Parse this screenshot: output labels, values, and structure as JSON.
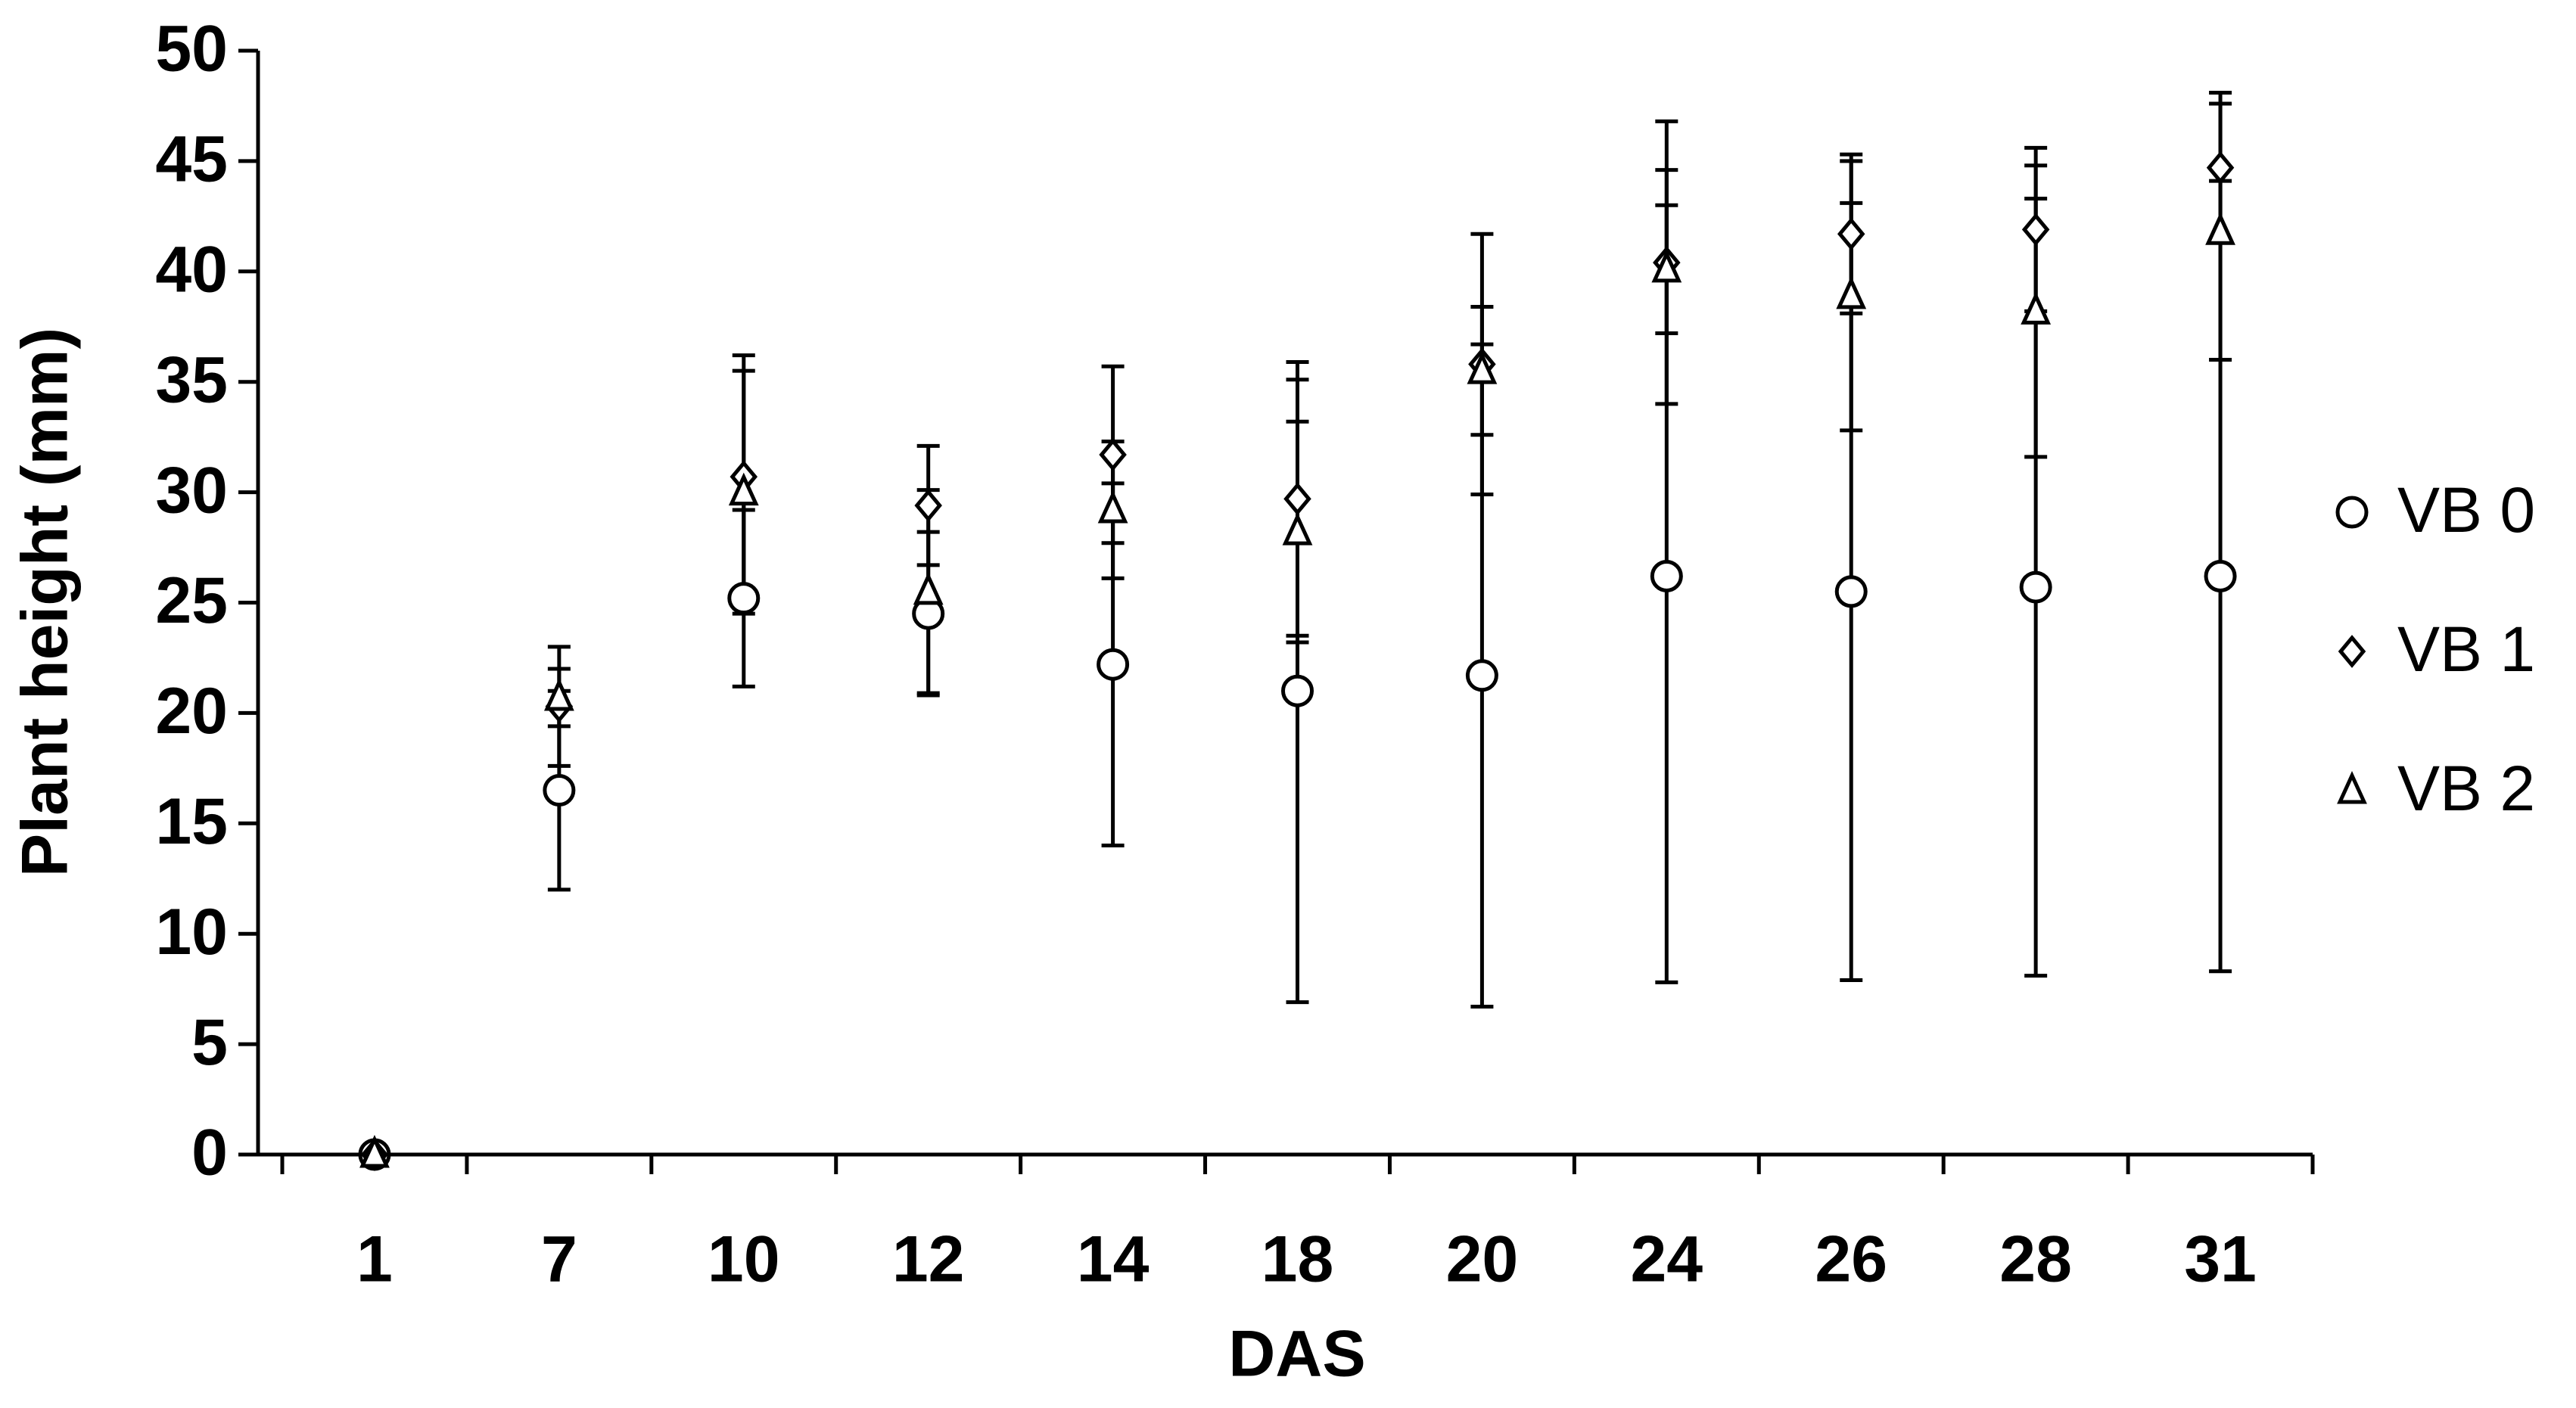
{
  "chart_data": {
    "type": "scatter",
    "x_label": "DAS",
    "y_label": "Plant height (mm)",
    "categories": [
      "1",
      "7",
      "10",
      "12",
      "14",
      "18",
      "20",
      "24",
      "26",
      "28",
      "31"
    ],
    "ylim": [
      0,
      50
    ],
    "yticks": [
      0,
      5,
      10,
      15,
      20,
      25,
      30,
      35,
      40,
      45,
      50
    ],
    "legend": "right",
    "series": [
      {
        "name": "VB 0",
        "marker": "circle",
        "color": "#000000",
        "values": [
          0,
          16.5,
          25.2,
          24.5,
          22.2,
          21.0,
          21.7,
          26.2,
          25.5,
          25.7,
          26.2
        ],
        "errors": [
          0,
          4.5,
          4.0,
          3.7,
          8.2,
          14.1,
          15.0,
          18.4,
          17.6,
          17.6,
          17.9
        ]
      },
      {
        "name": "VB 1",
        "marker": "diamond",
        "color": "#000000",
        "values": [
          0,
          20.3,
          30.7,
          29.4,
          31.7,
          29.7,
          35.8,
          40.4,
          41.7,
          41.9,
          44.7
        ],
        "errors": [
          0,
          2.7,
          5.5,
          2.7,
          4.0,
          6.2,
          5.9,
          6.4,
          3.6,
          3.7,
          3.4
        ]
      },
      {
        "name": "VB 2",
        "marker": "triangle",
        "color": "#000000",
        "values": [
          0,
          20.7,
          30.0,
          25.5,
          29.2,
          28.2,
          35.5,
          40.1,
          38.9,
          38.2,
          41.8
        ],
        "errors": [
          0,
          1.3,
          5.5,
          4.6,
          3.1,
          5.0,
          2.9,
          2.9,
          6.1,
          6.6,
          5.8
        ]
      }
    ]
  }
}
